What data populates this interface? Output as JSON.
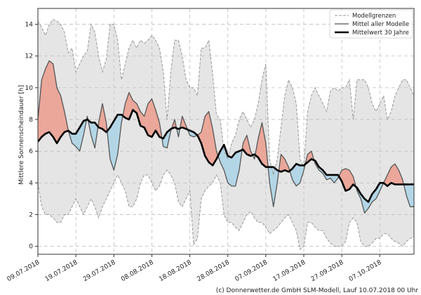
{
  "chart_data": {
    "type": "area",
    "title": "",
    "xlabel": "",
    "ylabel": "Mittlere Sonnenscheindauer [h]",
    "ylim": [
      -0.5,
      15
    ],
    "yticks": [
      0,
      2,
      4,
      6,
      8,
      10,
      12,
      14
    ],
    "start_date": "09.07.2018",
    "num_days": 100,
    "xtick_labels": [
      "09.07.2018",
      "19.07.2018",
      "29.07.2018",
      "08.08.2018",
      "18.08.2018",
      "28.08.2018",
      "07.09.2018",
      "17.09.2018",
      "27.09.2018",
      "07.10.2018"
    ],
    "xtick_days": [
      0,
      10,
      20,
      30,
      40,
      50,
      60,
      70,
      80,
      90
    ],
    "grid": true,
    "legend_position": "top-right",
    "legend": {
      "range": "Modellgrenzen",
      "model_mean": "Mittel aller Modelle",
      "climate_mean": "Mittelwert 30 Jahre"
    },
    "credit": "(c) Donnerwetter.de GmbH SLM-Modell, Lauf 10.07.2018 00 Uhr",
    "colors": {
      "range_fill": "#e5e5e5",
      "range_line": "#999999",
      "above_fill": "#eaa79a",
      "below_fill": "#b3d6e6",
      "model_line": "#555555",
      "climate_line": "#000000",
      "grid": "#bfbfbf"
    },
    "series": [
      {
        "name": "Modellgrenzen (oben)",
        "values": [
          14.2,
          13.8,
          13.3,
          14.0,
          14.3,
          14.2,
          14.0,
          13.5,
          12.2,
          12.5,
          11.0,
          11.5,
          12.0,
          12.3,
          14.0,
          13.5,
          12.0,
          11.0,
          11.8,
          14.0,
          14.0,
          13.0,
          10.5,
          11.5,
          12.5,
          13.0,
          12.5,
          13.0,
          12.8,
          13.0,
          13.3,
          13.0,
          12.5,
          11.0,
          8.0,
          11.0,
          13.0,
          13.0,
          12.0,
          10.5,
          10.0,
          10.0,
          9.5,
          12.5,
          12.5,
          13.0,
          10.8,
          8.3,
          8.0,
          6.0,
          5.5,
          6.5,
          7.0,
          8.0,
          8.5,
          8.0,
          7.5,
          8.0,
          9.0,
          10.5,
          11.5,
          5.5,
          4.5,
          5.5,
          7.5,
          9.5,
          10.5,
          10.0,
          9.0,
          5.5,
          5.0,
          8.5,
          9.5,
          10.0,
          9.5,
          9.0,
          8.5,
          9.8,
          10.0,
          9.8,
          10.0,
          10.0,
          10.5,
          8.0,
          10.5,
          10.5,
          10.5,
          10.0,
          9.0,
          8.5,
          9.0,
          9.5,
          8.0,
          8.5,
          9.5,
          10.0,
          10.5,
          10.5,
          10.0,
          9.5
        ]
      },
      {
        "name": "Modellgrenzen (unten)",
        "values": [
          4.0,
          2.5,
          2.0,
          2.0,
          1.8,
          1.5,
          1.5,
          2.0,
          2.0,
          2.5,
          3.0,
          2.5,
          2.0,
          2.5,
          3.0,
          2.5,
          1.8,
          2.5,
          3.0,
          3.5,
          4.0,
          4.5,
          4.0,
          3.5,
          2.5,
          2.5,
          3.0,
          4.0,
          4.5,
          4.5,
          4.0,
          3.5,
          3.8,
          4.5,
          4.8,
          4.5,
          4.0,
          2.8,
          2.5,
          3.0,
          3.5,
          0.1,
          0.5,
          3.0,
          3.5,
          3.8,
          4.0,
          4.5,
          4.0,
          2.0,
          1.5,
          1.5,
          1.2,
          1.0,
          1.5,
          2.0,
          2.2,
          1.8,
          1.5,
          1.5,
          1.2,
          0.8,
          1.0,
          1.2,
          1.5,
          1.8,
          2.0,
          1.5,
          1.0,
          -0.2,
          0.0,
          1.5,
          1.5,
          1.2,
          1.0,
          1.0,
          0.5,
          0.2,
          0.0,
          0.0,
          0.0,
          0.3,
          1.5,
          1.8,
          1.5,
          0.3,
          0.0,
          0.0,
          0.2,
          0.5,
          0.5,
          0.8,
          0.8,
          0.5,
          0.3,
          0.2,
          0.0,
          0.3,
          0.5,
          0.6
        ]
      },
      {
        "name": "Mittel aller Modelle",
        "values": [
          8.0,
          10.5,
          11.2,
          11.7,
          11.5,
          10.0,
          9.5,
          8.5,
          7.3,
          6.5,
          6.3,
          6.0,
          7.0,
          8.2,
          7.0,
          6.2,
          7.8,
          9.0,
          7.8,
          5.5,
          4.8,
          5.8,
          7.8,
          9.0,
          9.7,
          9.2,
          9.0,
          8.5,
          8.2,
          9.0,
          9.3,
          8.6,
          7.8,
          6.3,
          6.2,
          7.3,
          8.0,
          6.9,
          8.2,
          7.6,
          7.0,
          6.9,
          7.0,
          7.2,
          8.2,
          8.5,
          7.4,
          6.0,
          5.3,
          4.8,
          4.0,
          3.8,
          3.8,
          4.8,
          6.5,
          7.0,
          6.0,
          5.5,
          6.8,
          7.8,
          6.5,
          4.0,
          2.5,
          4.0,
          5.8,
          5.5,
          5.0,
          4.2,
          3.8,
          4.0,
          4.8,
          5.8,
          6.0,
          5.2,
          4.8,
          4.6,
          4.2,
          4.3,
          4.0,
          4.3,
          4.8,
          4.9,
          4.8,
          4.4,
          3.5,
          3.0,
          2.1,
          2.4,
          2.8,
          3.0,
          3.5,
          4.0,
          4.5,
          5.0,
          5.2,
          4.8,
          4.2,
          3.2,
          2.5,
          2.5
        ]
      },
      {
        "name": "Mittelwert 30 Jahre",
        "values": [
          6.6,
          6.9,
          7.1,
          7.2,
          6.9,
          6.5,
          6.9,
          7.2,
          7.3,
          7.1,
          7.1,
          7.5,
          7.9,
          8.0,
          7.8,
          7.8,
          7.5,
          7.4,
          7.2,
          7.5,
          7.9,
          8.3,
          8.3,
          8.1,
          8.0,
          8.6,
          8.4,
          7.6,
          7.5,
          7.0,
          6.9,
          7.3,
          6.9,
          6.8,
          7.2,
          7.4,
          7.5,
          7.4,
          7.5,
          7.4,
          7.3,
          7.2,
          7.0,
          6.5,
          5.7,
          5.3,
          5.1,
          5.5,
          6.0,
          6.4,
          5.7,
          5.6,
          5.9,
          6.0,
          6.1,
          5.8,
          5.7,
          5.8,
          5.6,
          5.2,
          5.0,
          5.0,
          5.0,
          4.8,
          4.7,
          4.8,
          4.7,
          4.9,
          5.2,
          5.1,
          5.1,
          5.3,
          5.5,
          5.4,
          5.0,
          4.8,
          4.5,
          4.5,
          4.5,
          4.5,
          4.1,
          3.5,
          3.6,
          3.9,
          3.7,
          3.3,
          3.0,
          2.8,
          3.3,
          3.6,
          4.0,
          4.0,
          3.8,
          4.0,
          3.9,
          3.9,
          3.9,
          3.9,
          3.9,
          3.9
        ]
      }
    ]
  }
}
